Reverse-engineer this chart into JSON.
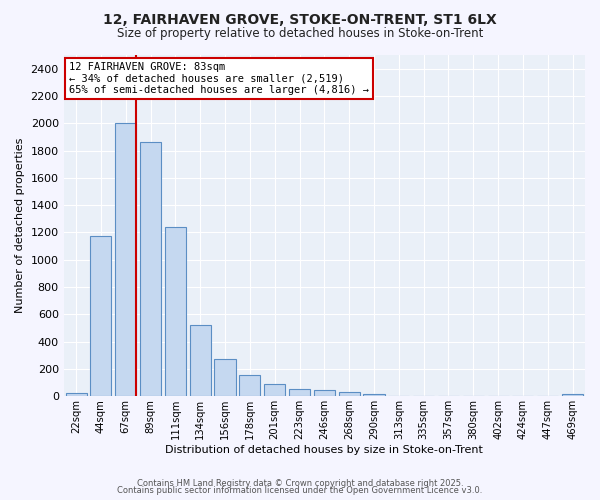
{
  "title_line1": "12, FAIRHAVEN GROVE, STOKE-ON-TRENT, ST1 6LX",
  "title_line2": "Size of property relative to detached houses in Stoke-on-Trent",
  "xlabel": "Distribution of detached houses by size in Stoke-on-Trent",
  "ylabel": "Number of detached properties",
  "bar_labels": [
    "22sqm",
    "44sqm",
    "67sqm",
    "89sqm",
    "111sqm",
    "134sqm",
    "156sqm",
    "178sqm",
    "201sqm",
    "223sqm",
    "246sqm",
    "268sqm",
    "290sqm",
    "313sqm",
    "335sqm",
    "357sqm",
    "380sqm",
    "402sqm",
    "424sqm",
    "447sqm",
    "469sqm"
  ],
  "bar_values": [
    25,
    1175,
    2000,
    1860,
    1240,
    525,
    275,
    155,
    90,
    55,
    45,
    30,
    15,
    5,
    5,
    5,
    5,
    5,
    5,
    5,
    15
  ],
  "bar_color": "#c5d8f0",
  "bar_edge_color": "#5b8ec4",
  "bg_color": "#eaf0f8",
  "grid_color": "#ffffff",
  "annotation_text": "12 FAIRHAVEN GROVE: 83sqm\n← 34% of detached houses are smaller (2,519)\n65% of semi-detached houses are larger (4,816) →",
  "annotation_box_color": "#ffffff",
  "annotation_box_edge_color": "#cc0000",
  "vline_color": "#cc0000",
  "vline_bar_index": 2,
  "ylim": [
    0,
    2500
  ],
  "yticks": [
    0,
    200,
    400,
    600,
    800,
    1000,
    1200,
    1400,
    1600,
    1800,
    2000,
    2200,
    2400
  ],
  "footer_line1": "Contains HM Land Registry data © Crown copyright and database right 2025.",
  "footer_line2": "Contains public sector information licensed under the Open Government Licence v3.0.",
  "fig_bg_color": "#f5f5ff"
}
